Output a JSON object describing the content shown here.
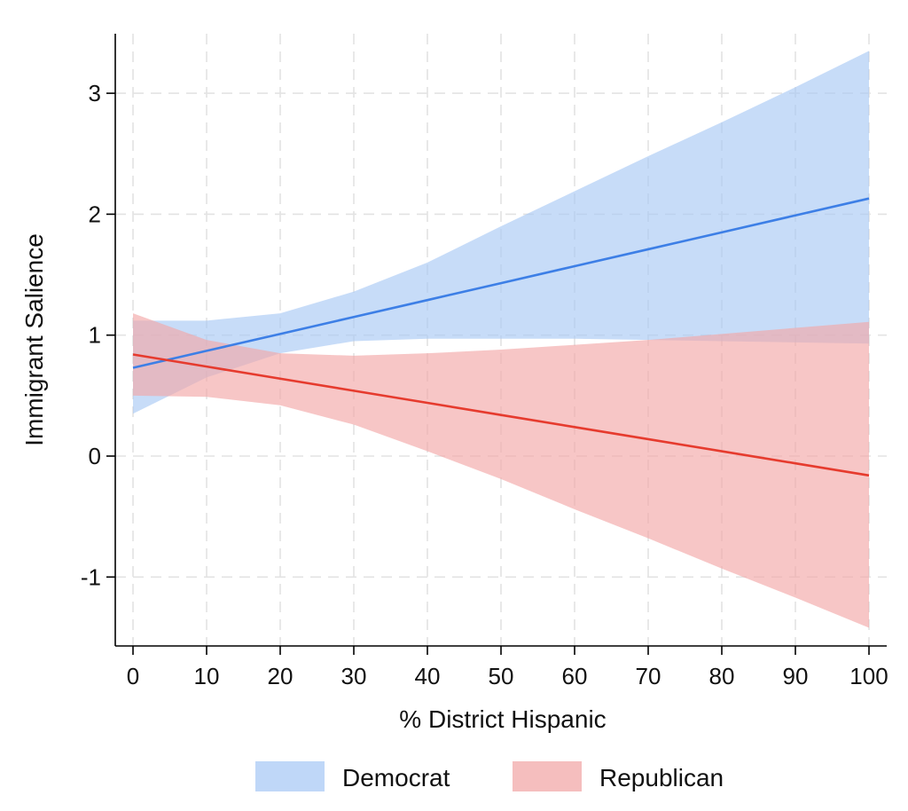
{
  "chart_data": {
    "type": "line",
    "title": "",
    "xlabel": "% District Hispanic",
    "ylabel": "Immigrant Salience",
    "xlim": [
      0,
      100
    ],
    "ylim": [
      -1.5,
      3.5
    ],
    "xticks": [
      0,
      10,
      20,
      30,
      40,
      50,
      60,
      70,
      80,
      90,
      100
    ],
    "yticks": [
      -1,
      0,
      1,
      2,
      3
    ],
    "grid": true,
    "legend_position": "bottom",
    "series": [
      {
        "name": "Democrat",
        "line_color": "#3d7fe6",
        "band_color": "#a9c9f5",
        "x": [
          0,
          10,
          20,
          30,
          40,
          50,
          60,
          70,
          80,
          90,
          100
        ],
        "y": [
          0.73,
          0.87,
          1.01,
          1.15,
          1.29,
          1.43,
          1.57,
          1.71,
          1.85,
          1.99,
          2.13
        ],
        "lower": [
          0.35,
          0.65,
          0.85,
          0.95,
          0.97,
          0.97,
          0.97,
          0.96,
          0.95,
          0.94,
          0.93
        ],
        "upper": [
          1.12,
          1.12,
          1.18,
          1.36,
          1.6,
          1.9,
          2.19,
          2.48,
          2.76,
          3.05,
          3.35
        ]
      },
      {
        "name": "Republican",
        "line_color": "#e63b2e",
        "band_color": "#f2a8a8",
        "x": [
          0,
          10,
          20,
          30,
          40,
          50,
          60,
          70,
          80,
          90,
          100
        ],
        "y": [
          0.84,
          0.74,
          0.64,
          0.54,
          0.44,
          0.34,
          0.24,
          0.14,
          0.04,
          -0.06,
          -0.16
        ],
        "lower": [
          0.5,
          0.49,
          0.42,
          0.26,
          0.04,
          -0.19,
          -0.44,
          -0.68,
          -0.93,
          -1.17,
          -1.42
        ],
        "upper": [
          1.18,
          0.96,
          0.85,
          0.83,
          0.85,
          0.88,
          0.92,
          0.96,
          1.01,
          1.06,
          1.11
        ]
      }
    ]
  }
}
